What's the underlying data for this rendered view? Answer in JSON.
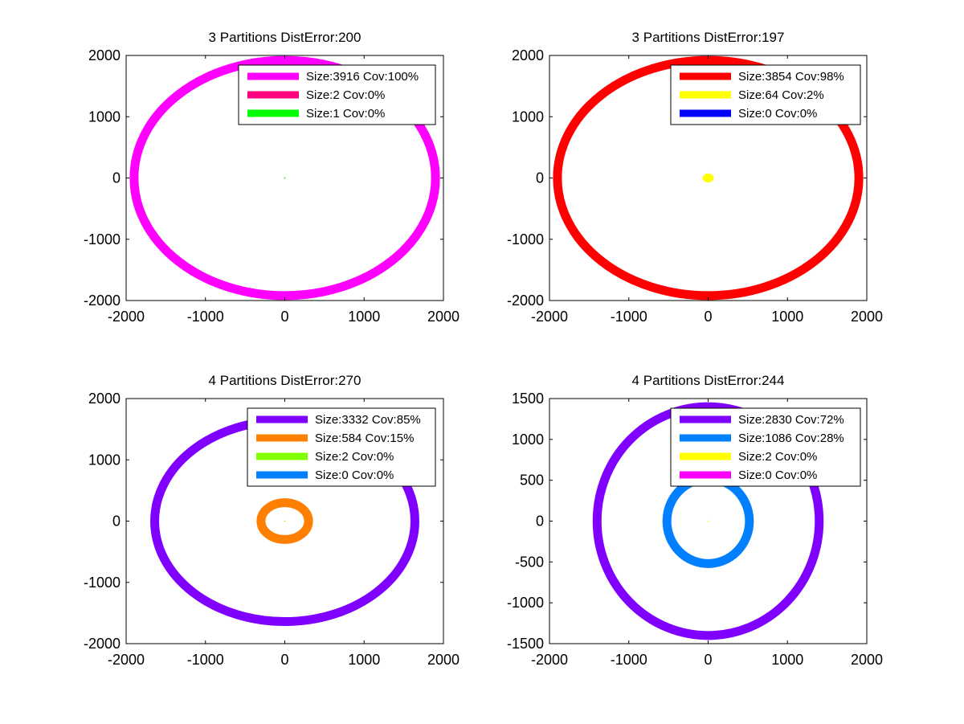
{
  "chart_data": [
    {
      "type": "scatter",
      "title": "3 Partitions DistError:200",
      "xlim": [
        -2000,
        2000
      ],
      "ylim": [
        -2000,
        2000
      ],
      "xticks": [
        -2000,
        -1000,
        0,
        1000,
        2000
      ],
      "yticks": [
        -2000,
        -1000,
        0,
        1000,
        2000
      ],
      "xlabel": "",
      "ylabel": "",
      "legend_position": "top-right",
      "series": [
        {
          "name": "Size:3916 Cov:100%",
          "color": "#ff00ff",
          "shape": "ring",
          "center": [
            0,
            0
          ],
          "rx": 1900,
          "ry": 1920
        },
        {
          "name": "Size:2 Cov:0%",
          "color": "#ff0080",
          "shape": "dot",
          "center": [
            0,
            0
          ]
        },
        {
          "name": "Size:1 Cov:0%",
          "color": "#00ff00",
          "shape": "dot",
          "center": [
            0,
            0
          ]
        }
      ]
    },
    {
      "type": "scatter",
      "title": "3 Partitions DistError:197",
      "xlim": [
        -2000,
        2000
      ],
      "ylim": [
        -2000,
        2000
      ],
      "xticks": [
        -2000,
        -1000,
        0,
        1000,
        2000
      ],
      "yticks": [
        -2000,
        -1000,
        0,
        1000,
        2000
      ],
      "xlabel": "",
      "ylabel": "",
      "legend_position": "top-right",
      "series": [
        {
          "name": "Size:3854 Cov:98%",
          "color": "#ff0000",
          "shape": "ring",
          "center": [
            0,
            0
          ],
          "rx": 1900,
          "ry": 1920
        },
        {
          "name": "Size:64 Cov:2%",
          "color": "#ffff00",
          "shape": "blob",
          "center": [
            0,
            0
          ],
          "rx": 60,
          "ry": 60
        },
        {
          "name": "Size:0 Cov:0%",
          "color": "#0000ff",
          "shape": "none"
        }
      ]
    },
    {
      "type": "scatter",
      "title": "4 Partitions DistError:270",
      "xlim": [
        -2000,
        2000
      ],
      "ylim": [
        -2000,
        2000
      ],
      "xticks": [
        -2000,
        -1000,
        0,
        1000,
        2000
      ],
      "yticks": [
        -2000,
        -1000,
        0,
        1000,
        2000
      ],
      "xlabel": "",
      "ylabel": "",
      "legend_position": "top-right",
      "series": [
        {
          "name": "Size:3332 Cov:85%",
          "color": "#8000ff",
          "shape": "ring",
          "center": [
            0,
            0
          ],
          "rx": 1640,
          "ry": 1640
        },
        {
          "name": "Size:584 Cov:15%",
          "color": "#ff8000",
          "shape": "ring",
          "center": [
            0,
            0
          ],
          "rx": 300,
          "ry": 300
        },
        {
          "name": "Size:2 Cov:0%",
          "color": "#80ff00",
          "shape": "dot",
          "center": [
            0,
            0
          ]
        },
        {
          "name": "Size:0 Cov:0%",
          "color": "#0080ff",
          "shape": "none"
        }
      ]
    },
    {
      "type": "scatter",
      "title": "4 Partitions DistError:244",
      "xlim": [
        -2000,
        2000
      ],
      "ylim": [
        -1500,
        1500
      ],
      "xticks": [
        -2000,
        -1000,
        0,
        1000,
        2000
      ],
      "yticks": [
        -1500,
        -1000,
        -500,
        0,
        500,
        1000,
        1500
      ],
      "xlabel": "",
      "ylabel": "",
      "legend_position": "top-right",
      "series": [
        {
          "name": "Size:2830 Cov:72%",
          "color": "#8000ff",
          "shape": "ring",
          "center": [
            0,
            0
          ],
          "rx": 1400,
          "ry": 1400
        },
        {
          "name": "Size:1086 Cov:28%",
          "color": "#0080ff",
          "shape": "ring",
          "center": [
            0,
            0
          ],
          "rx": 520,
          "ry": 520
        },
        {
          "name": "Size:2 Cov:0%",
          "color": "#ffff00",
          "shape": "dot",
          "center": [
            0,
            0
          ]
        },
        {
          "name": "Size:0 Cov:0%",
          "color": "#ff00ff",
          "shape": "none"
        }
      ]
    }
  ]
}
